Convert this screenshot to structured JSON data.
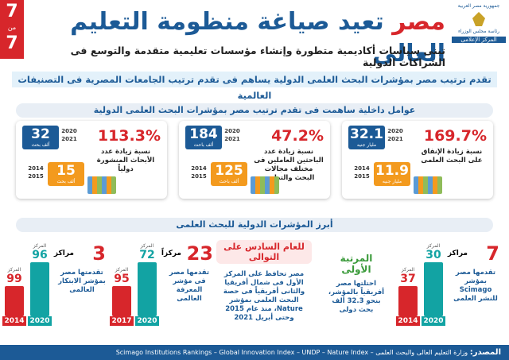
{
  "page_number": {
    "current": "7",
    "of": "من",
    "total": "7"
  },
  "header": {
    "title_highlight": "مصر",
    "title_rest": "تعيد صياغة منظومة التعليم العالى",
    "subtitle": "تبنى سياسات أكاديمية متطورة وإنشاء مؤسسات تعليمية متقدمة والتوسع فى الشراكات الدولية",
    "logo": [
      "جمهورية مصر العربية",
      "رئاسة مجلس الوزراء",
      "المركز الإعلامى"
    ]
  },
  "banner": "تقدم ترتيب مصر بمؤشرات البحث العلمى الدولية يساهم فى تقدم ترتيب الجامعات المصرية فى التصنيفات العالمية",
  "section1": {
    "title": "عوامل داخلية ساهمت فى تقدم ترتيب مصر بمؤشرات البحث العلمى الدولية",
    "cards": [
      {
        "percent": "169.7%",
        "description": "نسبة زيادة الإنفاق على البحث العلمى",
        "new": {
          "value": "32.1",
          "unit": "مليار جنيه",
          "years": [
            "2020",
            "2021"
          ]
        },
        "old": {
          "value": "11.9",
          "unit": "مليار جنيه",
          "years": [
            "2014",
            "2015"
          ]
        }
      },
      {
        "percent": "47.2%",
        "description": "نسبة زيادة عدد الباحثين العاملين فى مختلف مجالات البحث والتطوير",
        "new": {
          "value": "184",
          "unit": "ألف باحث",
          "years": [
            "2020",
            "2021"
          ]
        },
        "old": {
          "value": "125",
          "unit": "ألف باحث",
          "years": [
            "2014",
            "2015"
          ]
        }
      },
      {
        "percent": "113.3%",
        "description": "نسبة زيادة عدد الأبحاث المنشورة دولياً",
        "new": {
          "value": "32",
          "unit": "ألف بحث",
          "years": [
            "2020",
            "2021"
          ]
        },
        "old": {
          "value": "15",
          "unit": "ألف بحث",
          "years": [
            "2014",
            "2015"
          ]
        }
      }
    ]
  },
  "section2": {
    "title": "أبرز المؤشرات الدولية للبحث العلمى",
    "indicators": [
      {
        "number": "7",
        "unit": "مراكز",
        "description": "تقدمها مصر بمؤشر Scimago للنشر العلمى",
        "old": {
          "year": "2014",
          "label": "المركز",
          "rank": "37"
        },
        "new": {
          "year": "2020",
          "label": "المركز",
          "rank": "30"
        }
      },
      {
        "headline": "المرتبة الأولى",
        "description": "احتلتها مصر أفريقياً بالمؤشر، بنحو 32.3 ألف بحث دولى"
      },
      {
        "headline": "للعام السادس على التوالى",
        "description": "مصر تحافظ على المركز الأول فى شمال أفريقيا والثانى أفريقياً فى حصة البحث العلمى بمؤشر Nature، منذ عام 2015 وحتى أبريل 2021"
      },
      {
        "number": "23",
        "unit": "مركزاً",
        "description": "تقدمها مصر فى مؤشر المعرفة العالمى",
        "old": {
          "year": "2017",
          "label": "المركز",
          "rank": "95"
        },
        "new": {
          "year": "2020",
          "label": "المركز",
          "rank": "72"
        }
      },
      {
        "number": "3",
        "unit": "مراكز",
        "description": "تقدمتها مصر بمؤشر الابتكار العالمى",
        "old": {
          "year": "2014",
          "label": "المركز",
          "rank": "99"
        },
        "new": {
          "year": "2020",
          "label": "المركز",
          "rank": "96"
        }
      }
    ]
  },
  "footer": {
    "label": "المصدر:",
    "sources": "وزارة التعليم العالى والبحث العلمى – Scimago Institutions Rankings – Global Innovation Index – UNDP – Nature Index"
  }
}
